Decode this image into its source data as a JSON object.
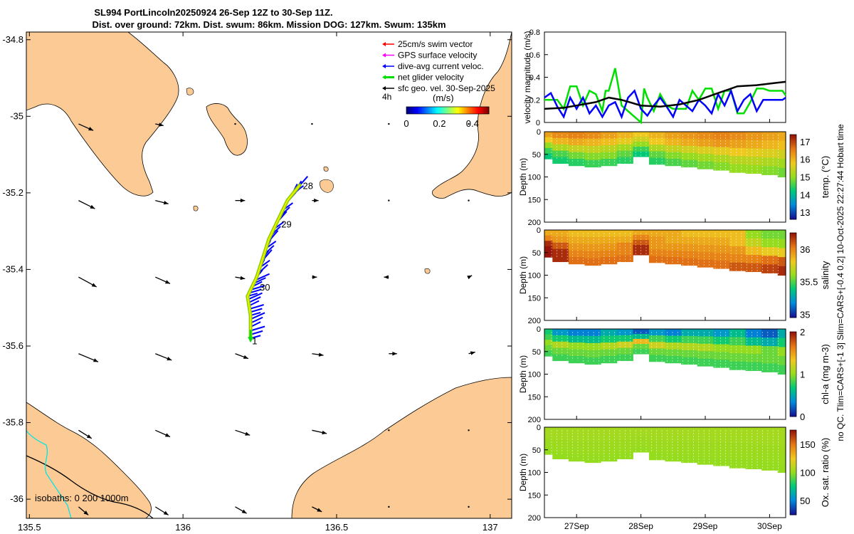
{
  "title_line1": "SL994 PortLincoln20250924 26-Sep 12Z to 30-Sep 11Z.",
  "title_line2": "Dist. over ground: 72km. Dist. swum: 86km. Mission DOG: 127km. Swum: 135km",
  "side_note": "no QC. Tlim=CARS+[-1 3] Slim=CARS+[-0.4 0.2] 10-Oct-2025 22:27:44 Hobart time",
  "colors": {
    "land": "#fccb95",
    "swim": "#ff0000",
    "gps": "#ff00ff",
    "dive": "#0000ff",
    "net": "#00e000",
    "sfc": "#000000",
    "isobath_200": "#000000",
    "isobath_1000": "#00e5e5"
  },
  "chart_data": [
    {
      "type": "map",
      "id": "track_map",
      "xlim": [
        135.49,
        137.07
      ],
      "ylim": [
        -36.05,
        -34.78
      ],
      "xticks": [
        135.5,
        136,
        136.5,
        137
      ],
      "xtick_labels": [
        "135.5",
        "136",
        "136.5",
        "137"
      ],
      "yticks": [
        -34.8,
        -35,
        -35.2,
        -35.4,
        -35.6,
        -35.8,
        -36
      ],
      "ytick_labels": [
        "-34.8",
        "-35",
        "-35.2",
        "-35.4",
        "-35.6",
        "-35.8",
        "-36"
      ],
      "legend": {
        "position": "top-right",
        "entries": [
          {
            "label": "25cm/s swim vector",
            "color": "#ff0000"
          },
          {
            "label": "GPS surface velocity",
            "color": "#ff00ff"
          },
          {
            "label": "dive-avg current veloc.",
            "color": "#0000ff"
          },
          {
            "label": "net glider velocity",
            "color": "#00e000"
          },
          {
            "label": "sfc geo. vel. 30-Sep-2025",
            "color": "#000000"
          }
        ]
      },
      "interval_label": "4h",
      "colorbar": {
        "label": "(m/s)",
        "range": [
          0,
          0.5
        ],
        "ticks": [
          "0",
          "0.2",
          "0.4"
        ]
      },
      "isobath_label": "isobaths: 0   200  1000m",
      "track": [
        [
          136.22,
          -35.58
        ],
        [
          136.22,
          -35.52
        ],
        [
          136.21,
          -35.47
        ],
        [
          136.24,
          -35.42
        ],
        [
          136.26,
          -35.37
        ],
        [
          136.28,
          -35.32
        ],
        [
          136.31,
          -35.27
        ],
        [
          136.34,
          -35.22
        ],
        [
          136.38,
          -35.18
        ]
      ],
      "day_labels": [
        {
          "text": "28",
          "lon": 136.39,
          "lat": -35.19
        },
        {
          "text": "29",
          "lon": 136.32,
          "lat": -35.29
        },
        {
          "text": "30",
          "lon": 136.25,
          "lat": -35.455
        },
        {
          "text": "1",
          "lon": 136.225,
          "lat": -35.595
        }
      ],
      "vector_lons": [
        135.66,
        135.91,
        136.17,
        136.42,
        136.67,
        136.93
      ],
      "vector_lats": [
        -35.02,
        -35.22,
        -35.42,
        -35.62,
        -35.82,
        -36.02
      ],
      "vectors_uv": [
        [
          [
            0.09,
            -0.04
          ],
          [
            0.05,
            -0.01
          ],
          [
            0.0,
            0.0
          ],
          [
            0.0,
            0.0
          ],
          [
            0.0,
            0.0
          ],
          [
            0.0,
            0.0
          ]
        ],
        [
          [
            0.1,
            -0.05
          ],
          [
            0.08,
            -0.02
          ],
          [
            0.06,
            0.0
          ],
          [
            0.04,
            0.0
          ],
          [
            0.0,
            0.0
          ],
          [
            0.0,
            0.0
          ]
        ],
        [
          [
            0.11,
            -0.06
          ],
          [
            0.09,
            -0.04
          ],
          [
            0.06,
            -0.01
          ],
          [
            0.03,
            0.0
          ],
          [
            -0.03,
            0.0
          ],
          [
            0.02,
            0.01
          ]
        ],
        [
          [
            0.12,
            -0.05
          ],
          [
            0.1,
            -0.04
          ],
          [
            0.08,
            -0.03
          ],
          [
            0.07,
            -0.01
          ],
          [
            0.05,
            0.0
          ],
          [
            0.04,
            0.01
          ]
        ],
        [
          [
            0.08,
            -0.05
          ],
          [
            0.09,
            -0.04
          ],
          [
            0.09,
            -0.03
          ],
          [
            0.09,
            -0.02
          ],
          [
            0.0,
            0.0
          ],
          [
            0.0,
            0.0
          ]
        ],
        [
          [
            0.06,
            -0.05
          ],
          [
            0.08,
            -0.05
          ],
          [
            0.07,
            -0.04
          ],
          [
            0.06,
            -0.03
          ],
          [
            0.0,
            0.0
          ],
          [
            0.0,
            0.0
          ]
        ]
      ]
    },
    {
      "type": "line",
      "id": "velocity_magnitude",
      "ylabel": "velocity magnitude (m/s)",
      "xlim": [
        26.5,
        30.25
      ],
      "ylim": [
        0,
        0.8
      ],
      "yticks": [
        0,
        0.2,
        0.4,
        0.6,
        0.8
      ],
      "series": [
        {
          "name": "net glider velocity",
          "color": "#00e000",
          "x": [
            26.5,
            26.7,
            26.8,
            26.9,
            27.0,
            27.1,
            27.2,
            27.3,
            27.4,
            27.45,
            27.5,
            27.6,
            27.7,
            27.8,
            27.9,
            28.0,
            28.05,
            28.1,
            28.2,
            28.3,
            28.4,
            28.5,
            28.6,
            28.7,
            28.8,
            28.9,
            29.0,
            29.1,
            29.2,
            29.3,
            29.4,
            29.5,
            29.6,
            29.7,
            29.8,
            29.9,
            30.0,
            30.1,
            30.2,
            30.25
          ],
          "y": [
            0.2,
            0.2,
            0.12,
            0.32,
            0.32,
            0.15,
            0.28,
            0.25,
            0.1,
            0.28,
            0.28,
            0.48,
            0.15,
            0.1,
            0.05,
            0.0,
            0.3,
            0.22,
            0.1,
            0.25,
            0.15,
            0.12,
            0.12,
            0.12,
            0.28,
            0.2,
            0.3,
            0.3,
            0.12,
            0.28,
            0.28,
            0.08,
            0.08,
            0.18,
            0.3,
            0.3,
            0.28,
            0.28,
            0.28,
            0.24
          ]
        },
        {
          "name": "dive-avg current veloc.",
          "color": "#0000ff",
          "x": [
            26.5,
            26.6,
            26.7,
            26.8,
            26.9,
            27.0,
            27.1,
            27.2,
            27.3,
            27.4,
            27.5,
            27.6,
            27.7,
            27.8,
            27.9,
            28.0,
            28.1,
            28.2,
            28.3,
            28.4,
            28.5,
            28.6,
            28.7,
            28.8,
            28.9,
            29.0,
            29.1,
            29.2,
            29.3,
            29.4,
            29.5,
            29.6,
            29.7,
            29.8,
            29.9,
            30.0,
            30.1,
            30.2,
            30.25
          ],
          "y": [
            0.22,
            0.26,
            0.14,
            0.05,
            0.22,
            0.12,
            0.22,
            0.08,
            0.15,
            0.05,
            0.15,
            0.18,
            0.05,
            0.22,
            0.28,
            0.12,
            0.06,
            0.15,
            0.22,
            0.14,
            0.05,
            0.2,
            0.15,
            0.1,
            0.2,
            0.15,
            0.08,
            0.25,
            0.15,
            0.28,
            0.1,
            0.2,
            0.25,
            0.1,
            0.2,
            0.2,
            0.2,
            0.2,
            0.22
          ]
        },
        {
          "name": "sfc geo. vel.",
          "color": "#000000",
          "x": [
            26.5,
            26.8,
            27.0,
            27.3,
            27.5,
            27.7,
            28.0,
            28.3,
            28.6,
            28.9,
            29.2,
            29.5,
            29.8,
            30.1,
            30.25
          ],
          "y": [
            0.12,
            0.13,
            0.15,
            0.18,
            0.22,
            0.2,
            0.15,
            0.14,
            0.16,
            0.2,
            0.26,
            0.32,
            0.33,
            0.35,
            0.36
          ]
        }
      ]
    },
    {
      "type": "heatmap",
      "id": "temperature_section",
      "ylabel": "Depth (m)",
      "ylim": [
        0,
        200
      ],
      "yticks": [
        0,
        50,
        100,
        150,
        200
      ],
      "colorbar_label": "temp. (°C)",
      "crange": [
        12.6,
        17.4
      ],
      "cticks": [
        13,
        14,
        15,
        16,
        17
      ],
      "x_days": [
        26.5,
        26.75,
        27.0,
        27.25,
        27.5,
        27.75,
        28.0,
        28.25,
        28.5,
        28.75,
        29.0,
        29.25,
        29.5,
        29.75,
        30.0,
        30.25
      ],
      "max_depth": [
        60,
        70,
        75,
        78,
        75,
        70,
        55,
        72,
        75,
        78,
        82,
        85,
        90,
        92,
        95,
        100
      ],
      "values": [
        [
          16.2,
          16.4,
          16.5,
          16.4,
          16.2,
          16.0,
          15.8,
          16.0,
          16.2,
          16.3,
          16.4,
          16.5,
          16.4,
          16.3,
          16.2,
          16.1
        ],
        [
          15.8,
          16.0,
          16.1,
          16.0,
          15.9,
          15.7,
          15.5,
          15.8,
          16.0,
          16.1,
          16.2,
          16.3,
          16.2,
          16.1,
          16.0,
          15.9
        ],
        [
          15.0,
          15.2,
          15.4,
          15.4,
          15.3,
          15.1,
          15.0,
          15.2,
          15.4,
          15.5,
          15.6,
          15.7,
          15.8,
          15.7,
          15.6,
          15.5
        ],
        [
          14.5,
          14.6,
          14.8,
          14.9,
          14.9,
          14.7,
          14.5,
          14.7,
          14.9,
          15.0,
          15.1,
          15.2,
          15.3,
          15.3,
          15.2,
          15.1
        ],
        [
          14.2,
          14.3,
          14.4,
          14.5,
          14.5,
          14.4,
          14.2,
          14.4,
          14.6,
          14.7,
          14.8,
          14.9,
          15.0,
          15.0,
          14.9,
          14.8
        ]
      ]
    },
    {
      "type": "heatmap",
      "id": "salinity_section",
      "ylabel": "Depth (m)",
      "ylim": [
        0,
        200
      ],
      "yticks": [
        0,
        50,
        100,
        150,
        200
      ],
      "colorbar_label": "salinity",
      "crange": [
        34.95,
        36.25
      ],
      "cticks": [
        35,
        35.5,
        36
      ],
      "x_days": [
        26.5,
        26.75,
        27.0,
        27.25,
        27.5,
        27.75,
        28.0,
        28.25,
        28.5,
        28.75,
        29.0,
        29.25,
        29.5,
        29.75,
        30.0,
        30.25
      ],
      "max_depth": [
        60,
        70,
        75,
        78,
        75,
        70,
        55,
        72,
        75,
        78,
        82,
        85,
        90,
        92,
        95,
        100
      ],
      "values": [
        [
          35.9,
          35.9,
          35.85,
          35.85,
          35.85,
          35.85,
          35.9,
          35.9,
          35.9,
          35.85,
          35.85,
          35.85,
          35.85,
          35.6,
          35.55,
          35.55
        ],
        [
          36.0,
          35.95,
          35.9,
          35.9,
          35.9,
          35.9,
          36.0,
          35.95,
          35.9,
          35.9,
          35.9,
          35.9,
          35.85,
          35.7,
          35.6,
          35.6
        ],
        [
          36.2,
          36.1,
          35.95,
          35.95,
          35.95,
          36.0,
          36.1,
          35.95,
          35.95,
          35.95,
          35.95,
          35.95,
          35.95,
          35.85,
          35.8,
          35.8
        ],
        [
          36.25,
          36.2,
          36.0,
          36.0,
          36.0,
          36.0,
          36.2,
          36.0,
          36.0,
          36.0,
          36.0,
          36.0,
          36.0,
          36.0,
          36.05,
          36.1
        ],
        [
          36.25,
          36.2,
          36.05,
          36.05,
          36.05,
          36.05,
          36.2,
          36.05,
          36.05,
          36.05,
          36.05,
          36.05,
          36.1,
          36.1,
          36.15,
          36.2
        ]
      ]
    },
    {
      "type": "heatmap",
      "id": "chlorophyll_section",
      "ylabel": "Depth (m)",
      "ylim": [
        0,
        200
      ],
      "yticks": [
        0,
        50,
        100,
        150,
        200
      ],
      "colorbar_label": "chl-a (mg m-3)",
      "crange": [
        0,
        2
      ],
      "cticks": [
        0,
        1,
        2
      ],
      "x_days": [
        26.5,
        26.75,
        27.0,
        27.25,
        27.5,
        27.75,
        28.0,
        28.25,
        28.5,
        28.75,
        29.0,
        29.25,
        29.5,
        29.75,
        30.0,
        30.25
      ],
      "max_depth": [
        60,
        70,
        75,
        78,
        75,
        70,
        55,
        72,
        75,
        78,
        82,
        85,
        90,
        92,
        95,
        100
      ],
      "values": [
        [
          0.7,
          0.4,
          0.3,
          0.3,
          0.5,
          0.4,
          0.2,
          0.4,
          0.3,
          0.5,
          0.5,
          0.4,
          0.6,
          0.3,
          0.2,
          0.5
        ],
        [
          0.8,
          0.7,
          0.6,
          0.6,
          0.7,
          0.7,
          0.6,
          0.8,
          0.7,
          0.8,
          0.8,
          0.7,
          0.8,
          0.6,
          0.5,
          0.7
        ],
        [
          1.0,
          1.1,
          1.0,
          1.0,
          1.1,
          1.2,
          1.4,
          1.2,
          1.1,
          1.1,
          1.1,
          1.0,
          1.0,
          1.0,
          0.9,
          1.0
        ],
        [
          0.9,
          0.9,
          0.9,
          0.9,
          0.9,
          0.9,
          0.9,
          0.9,
          0.9,
          0.9,
          0.9,
          0.9,
          0.9,
          0.9,
          0.9,
          0.9
        ],
        [
          0.8,
          0.8,
          0.8,
          0.8,
          0.8,
          0.8,
          0.8,
          0.8,
          0.8,
          0.8,
          0.8,
          0.8,
          0.8,
          0.8,
          0.8,
          0.8
        ]
      ]
    },
    {
      "type": "heatmap",
      "id": "oxygen_section",
      "ylabel": "Depth (m)",
      "ylim": [
        0,
        200
      ],
      "yticks": [
        0,
        50,
        100,
        150,
        200
      ],
      "colorbar_label": "Ox. sat. ratio (%)",
      "crange": [
        25,
        175
      ],
      "cticks": [
        50,
        100,
        150
      ],
      "x_days": [
        26.5,
        26.75,
        27.0,
        27.25,
        27.5,
        27.75,
        28.0,
        28.25,
        28.5,
        28.75,
        29.0,
        29.25,
        29.5,
        29.75,
        30.0,
        30.25
      ],
      "max_depth": [
        60,
        70,
        75,
        78,
        75,
        70,
        55,
        72,
        75,
        78,
        82,
        85,
        90,
        92,
        95,
        100
      ],
      "values": [
        [
          104,
          104,
          104,
          104,
          104,
          104,
          104,
          104,
          104,
          104,
          104,
          104,
          104,
          104,
          104,
          104
        ],
        [
          103,
          103,
          103,
          103,
          103,
          103,
          103,
          103,
          103,
          103,
          103,
          103,
          103,
          103,
          103,
          103
        ],
        [
          102,
          102,
          102,
          102,
          102,
          102,
          102,
          102,
          102,
          102,
          102,
          102,
          102,
          102,
          102,
          102
        ],
        [
          101,
          101,
          101,
          101,
          101,
          101,
          101,
          101,
          101,
          101,
          101,
          101,
          101,
          101,
          101,
          101
        ],
        [
          100,
          100,
          100,
          100,
          100,
          100,
          100,
          100,
          100,
          100,
          100,
          100,
          100,
          100,
          100,
          100
        ]
      ]
    }
  ],
  "time_axis": {
    "xlim": [
      26.5,
      30.25
    ],
    "ticks": [
      27,
      28,
      29,
      30
    ],
    "labels": [
      "27Sep",
      "28Sep",
      "29Sep",
      "30Sep"
    ]
  }
}
